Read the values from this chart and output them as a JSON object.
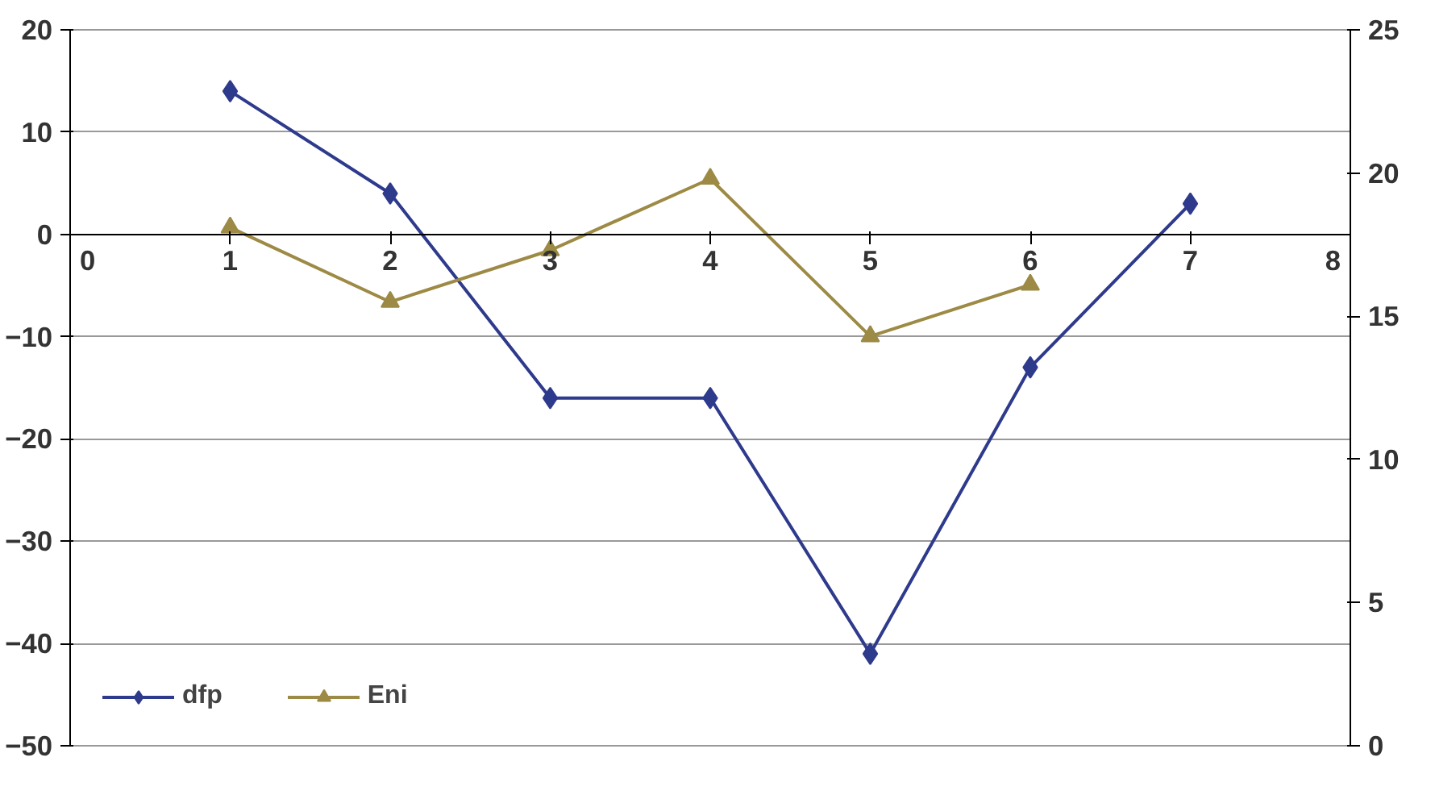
{
  "chart_data": {
    "type": "line",
    "x": [
      1,
      2,
      3,
      4,
      5,
      6,
      7
    ],
    "series": [
      {
        "name": "dfp",
        "color": "#2e3a8c",
        "marker": "diamond",
        "values": [
          14,
          4,
          -16,
          -16,
          -41,
          -13,
          3
        ]
      },
      {
        "name": "Eni",
        "color": "#9c8a45",
        "marker": "triangle",
        "axis": "y2",
        "values": [
          18.1,
          15.5,
          17.3,
          19.8,
          14.3,
          16.1,
          null
        ]
      }
    ],
    "xlim": [
      0,
      8
    ],
    "xticks": [
      0,
      1,
      2,
      3,
      4,
      5,
      6,
      7,
      8
    ],
    "ylim": [
      -50,
      20
    ],
    "yticks": [
      -50,
      -40,
      -30,
      -20,
      -10,
      0,
      10,
      20
    ],
    "y2lim": [
      0,
      25
    ],
    "y2ticks": [
      0,
      5,
      10,
      15,
      20,
      25
    ],
    "grid": "y",
    "legend": "bottom left"
  }
}
